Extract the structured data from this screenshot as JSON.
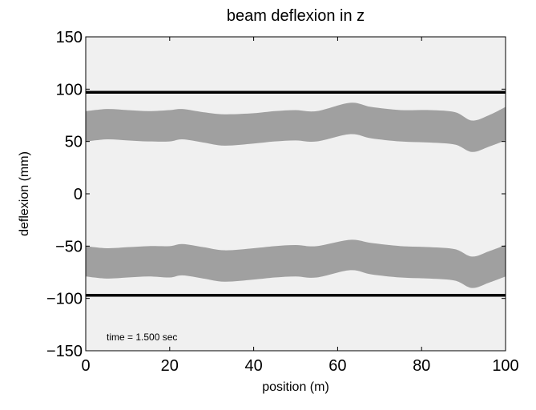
{
  "chart_data": {
    "type": "area",
    "title": "beam deflexion in z",
    "xlabel": "position (m)",
    "ylabel": "deflexion (mm)",
    "xlim": [
      0,
      100
    ],
    "ylim": [
      -150,
      150
    ],
    "xticks": [
      0,
      20,
      40,
      60,
      80,
      100
    ],
    "xtick_labels": [
      "0",
      "20",
      "40",
      "60",
      "80",
      "100"
    ],
    "yticks": [
      150,
      100,
      50,
      0,
      -50,
      -100,
      -150
    ],
    "ytick_labels": [
      "150",
      "100",
      "50",
      "0",
      "−50",
      "−100",
      "−150"
    ],
    "grid": false,
    "plot_background": "#f0f0f0",
    "limit_lines": [
      {
        "y": 97,
        "color": "#000000"
      },
      {
        "y": -97,
        "color": "#000000"
      }
    ],
    "series": [
      {
        "color": "#a0a0a0",
        "x": [
          0,
          5,
          10,
          15,
          20,
          23,
          28,
          33,
          40,
          45,
          50,
          55,
          63,
          68,
          75,
          82,
          88,
          92,
          96,
          100
        ],
        "upper": [
          79,
          81,
          80,
          79,
          80,
          81,
          78,
          76,
          77,
          79,
          80,
          79,
          87,
          83,
          80,
          80,
          78,
          70,
          75,
          83
        ],
        "lower": [
          50,
          52,
          51,
          50,
          50,
          52,
          49,
          46,
          48,
          50,
          51,
          50,
          57,
          53,
          50,
          49,
          47,
          40,
          45,
          51
        ]
      },
      {
        "color": "#a0a0a0",
        "x": [
          0,
          5,
          10,
          15,
          20,
          23,
          28,
          33,
          40,
          45,
          50,
          55,
          63,
          68,
          75,
          82,
          88,
          92,
          96,
          100
        ],
        "upper": [
          -50,
          -52,
          -51,
          -50,
          -50,
          -48,
          -51,
          -54,
          -52,
          -50,
          -49,
          -50,
          -44,
          -47,
          -50,
          -51,
          -53,
          -60,
          -55,
          -49
        ],
        "lower": [
          -79,
          -81,
          -80,
          -79,
          -80,
          -78,
          -81,
          -84,
          -82,
          -80,
          -79,
          -80,
          -73,
          -77,
          -80,
          -81,
          -83,
          -90,
          -85,
          -79
        ]
      }
    ],
    "annotation": "time = 1.500 sec"
  }
}
